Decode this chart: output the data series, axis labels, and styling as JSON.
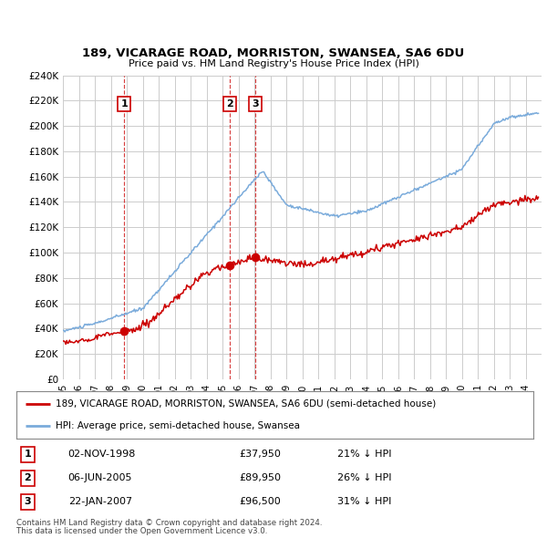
{
  "title": "189, VICARAGE ROAD, MORRISTON, SWANSEA, SA6 6DU",
  "subtitle": "Price paid vs. HM Land Registry's House Price Index (HPI)",
  "ylim": [
    0,
    240000
  ],
  "yticks": [
    0,
    20000,
    40000,
    60000,
    80000,
    100000,
    120000,
    140000,
    160000,
    180000,
    200000,
    220000,
    240000
  ],
  "xlim_start": 1995.0,
  "xlim_end": 2025.0,
  "red_line_color": "#cc0000",
  "blue_line_color": "#7aabdb",
  "marker_color": "#cc0000",
  "dashed_line_color": "#cc0000",
  "grid_color": "#cccccc",
  "bg_color": "#ffffff",
  "sale_points": [
    {
      "num": 1,
      "year": 1998.84,
      "price": 37950,
      "label": "1",
      "date": "02-NOV-1998",
      "price_str": "£37,950",
      "hpi_str": "21% ↓ HPI"
    },
    {
      "num": 2,
      "year": 2005.43,
      "price": 89950,
      "label": "2",
      "date": "06-JUN-2005",
      "price_str": "£89,950",
      "hpi_str": "26% ↓ HPI"
    },
    {
      "num": 3,
      "year": 2007.06,
      "price": 96500,
      "label": "3",
      "date": "22-JAN-2007",
      "price_str": "£96,500",
      "hpi_str": "31% ↓ HPI"
    }
  ],
  "legend_line1": "189, VICARAGE ROAD, MORRISTON, SWANSEA, SA6 6DU (semi-detached house)",
  "legend_line2": "HPI: Average price, semi-detached house, Swansea",
  "footer1": "Contains HM Land Registry data © Crown copyright and database right 2024.",
  "footer2": "This data is licensed under the Open Government Licence v3.0."
}
